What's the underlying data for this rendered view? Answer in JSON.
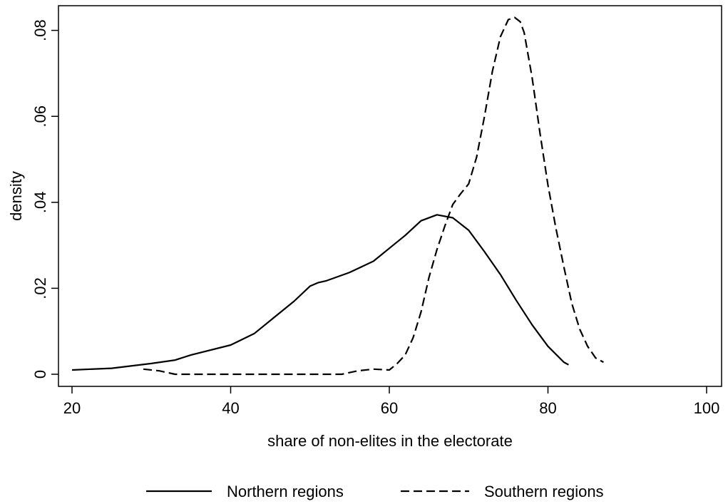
{
  "chart_data": {
    "type": "line",
    "title": "",
    "xlabel": "share of non-elites in the electorate",
    "ylabel": "density",
    "xlim": [
      20,
      100
    ],
    "ylim": [
      0,
      0.084
    ],
    "x_ticks": [
      20,
      40,
      60,
      80,
      100
    ],
    "x_tick_labels": [
      "20",
      "40",
      "60",
      "80",
      "100"
    ],
    "y_ticks": [
      0,
      0.02,
      0.04,
      0.06,
      0.08
    ],
    "y_tick_labels": [
      "0",
      ".02",
      ".04",
      ".06",
      ".08"
    ],
    "grid": false,
    "legend": {
      "position": "bottom"
    },
    "series": [
      {
        "name": "Northern regions",
        "style": "solid",
        "color": "#000000",
        "x": [
          20,
          25,
          30,
          33,
          35,
          40,
          43,
          45,
          48,
          50,
          51,
          52,
          55,
          58,
          60,
          62,
          64,
          66,
          68,
          70,
          72,
          74,
          76,
          78,
          80,
          82,
          82.6
        ],
        "y": [
          0.001,
          0.0014,
          0.0025,
          0.0033,
          0.0045,
          0.0068,
          0.0095,
          0.0125,
          0.017,
          0.0205,
          0.0213,
          0.0217,
          0.0237,
          0.0263,
          0.0293,
          0.0323,
          0.0357,
          0.0371,
          0.0364,
          0.0335,
          0.0285,
          0.0232,
          0.0172,
          0.0115,
          0.0065,
          0.0028,
          0.0022
        ]
      },
      {
        "name": "Southern regions",
        "style": "dashed",
        "color": "#000000",
        "x": [
          29,
          31,
          33,
          40,
          45,
          50,
          53,
          54,
          56,
          58,
          60,
          61,
          62,
          63,
          64,
          65,
          66,
          67,
          68,
          69,
          70,
          71,
          72,
          73,
          74,
          75,
          75.8,
          76.5,
          77,
          78,
          79,
          80,
          81,
          82,
          83,
          84,
          85,
          86,
          87
        ],
        "y": [
          0.0012,
          0.0008,
          0.0,
          0.0,
          0.0,
          0.0,
          0.0,
          0.0,
          0.0008,
          0.0012,
          0.001,
          0.0025,
          0.0045,
          0.0085,
          0.0145,
          0.0225,
          0.029,
          0.0345,
          0.0395,
          0.042,
          0.0443,
          0.0505,
          0.06,
          0.0705,
          0.0785,
          0.0825,
          0.083,
          0.082,
          0.0795,
          0.069,
          0.056,
          0.044,
          0.034,
          0.025,
          0.0165,
          0.0105,
          0.0065,
          0.0038,
          0.0028
        ]
      }
    ]
  }
}
